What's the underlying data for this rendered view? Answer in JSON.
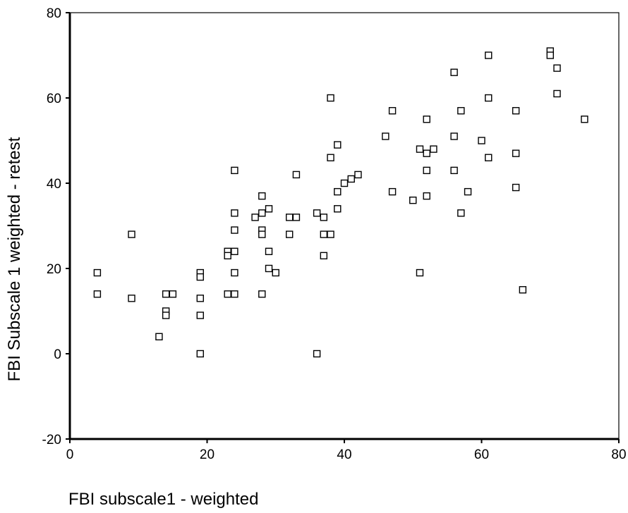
{
  "chart_data": {
    "type": "scatter",
    "xlabel": "FBI subscale1 - weighted",
    "ylabel": "FBI Subscale 1 weighted - retest",
    "xlim": [
      0,
      80
    ],
    "ylim": [
      -20,
      80
    ],
    "x_ticks": [
      0,
      20,
      40,
      60,
      80
    ],
    "y_ticks": [
      -20,
      0,
      20,
      40,
      60,
      80
    ],
    "grid": false,
    "marker": "open-square",
    "points": [
      [
        4,
        19
      ],
      [
        4,
        14
      ],
      [
        9,
        28
      ],
      [
        9,
        13
      ],
      [
        13,
        4
      ],
      [
        14,
        14
      ],
      [
        14,
        10
      ],
      [
        14,
        9
      ],
      [
        15,
        14
      ],
      [
        19,
        19
      ],
      [
        19,
        18
      ],
      [
        19,
        13
      ],
      [
        19,
        9
      ],
      [
        19,
        0
      ],
      [
        23,
        24
      ],
      [
        23,
        23
      ],
      [
        23,
        14
      ],
      [
        24,
        43
      ],
      [
        24,
        33
      ],
      [
        24,
        29
      ],
      [
        24,
        24
      ],
      [
        24,
        19
      ],
      [
        24,
        14
      ],
      [
        27,
        32
      ],
      [
        28,
        37
      ],
      [
        28,
        33
      ],
      [
        28,
        29
      ],
      [
        28,
        28
      ],
      [
        28,
        14
      ],
      [
        29,
        34
      ],
      [
        29,
        24
      ],
      [
        29,
        20
      ],
      [
        30,
        19
      ],
      [
        32,
        32
      ],
      [
        32,
        28
      ],
      [
        33,
        42
      ],
      [
        33,
        32
      ],
      [
        36,
        33
      ],
      [
        36,
        0
      ],
      [
        37,
        32
      ],
      [
        37,
        28
      ],
      [
        37,
        23
      ],
      [
        38,
        60
      ],
      [
        38,
        46
      ],
      [
        38,
        28
      ],
      [
        39,
        49
      ],
      [
        39,
        38
      ],
      [
        39,
        34
      ],
      [
        40,
        40
      ],
      [
        41,
        41
      ],
      [
        42,
        42
      ],
      [
        46,
        51
      ],
      [
        47,
        57
      ],
      [
        47,
        38
      ],
      [
        50,
        36
      ],
      [
        51,
        48
      ],
      [
        51,
        19
      ],
      [
        52,
        55
      ],
      [
        52,
        47
      ],
      [
        52,
        43
      ],
      [
        52,
        37
      ],
      [
        53,
        48
      ],
      [
        56,
        66
      ],
      [
        56,
        51
      ],
      [
        56,
        43
      ],
      [
        57,
        57
      ],
      [
        57,
        33
      ],
      [
        58,
        38
      ],
      [
        60,
        50
      ],
      [
        61,
        70
      ],
      [
        61,
        60
      ],
      [
        61,
        46
      ],
      [
        65,
        57
      ],
      [
        65,
        47
      ],
      [
        65,
        39
      ],
      [
        66,
        15
      ],
      [
        70,
        71
      ],
      [
        70,
        70
      ],
      [
        71,
        67
      ],
      [
        71,
        61
      ],
      [
        75,
        55
      ]
    ]
  }
}
